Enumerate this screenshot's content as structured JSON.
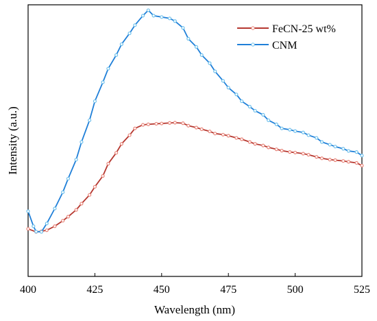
{
  "chart_data": {
    "type": "line",
    "title": "",
    "xlabel": "Wavelength (nm)",
    "ylabel": "Intensity (a.u.)",
    "xlim": [
      400,
      525
    ],
    "ylim": [
      0,
      100
    ],
    "x_ticks": [
      "400",
      "425",
      "450",
      "475",
      "500",
      "525"
    ],
    "y_ticks_shown": false,
    "grid": false,
    "legend_position": "top-right",
    "series": [
      {
        "name": "FeCN-25 wt%",
        "color": "#b5372f",
        "marker_color": "#e8857a",
        "x": [
          400,
          403,
          405,
          407,
          410,
          413,
          415,
          418,
          420,
          423,
          425,
          428,
          430,
          433,
          435,
          438,
          440,
          443,
          445,
          448,
          450,
          453,
          455,
          458,
          460,
          463,
          465,
          468,
          470,
          473,
          475,
          478,
          480,
          483,
          485,
          488,
          490,
          493,
          495,
          498,
          500,
          503,
          505,
          508,
          510,
          513,
          515,
          518,
          520,
          523,
          525
        ],
        "y": [
          17.5,
          16.4,
          16.6,
          17.0,
          18.5,
          20.5,
          22.0,
          24.5,
          26.8,
          30.0,
          33.0,
          37.0,
          41.5,
          45.5,
          48.8,
          52.0,
          54.5,
          55.8,
          56.0,
          56.2,
          56.3,
          56.5,
          56.6,
          56.4,
          55.5,
          54.8,
          54.2,
          53.4,
          52.6,
          52.2,
          51.8,
          51.0,
          50.5,
          49.5,
          48.8,
          48.2,
          47.5,
          46.8,
          46.3,
          45.8,
          45.6,
          45.2,
          44.8,
          44.0,
          43.5,
          43.0,
          42.8,
          42.5,
          42.2,
          41.8,
          40.8
        ]
      },
      {
        "name": "CNM",
        "color": "#1f7fd8",
        "marker_color": "#6fc0ec",
        "x": [
          400,
          402,
          403,
          405,
          407,
          410,
          413,
          415,
          418,
          420,
          423,
          425,
          428,
          430,
          433,
          435,
          438,
          440,
          443,
          445,
          447,
          450,
          453,
          455,
          458,
          460,
          463,
          465,
          468,
          470,
          473,
          475,
          478,
          480,
          483,
          485,
          488,
          490,
          493,
          495,
          498,
          500,
          503,
          505,
          508,
          510,
          513,
          515,
          518,
          520,
          523,
          525
        ],
        "y": [
          24.0,
          18.5,
          16.5,
          16.4,
          19.5,
          25.0,
          31.0,
          36.0,
          43.0,
          49.5,
          57.5,
          64.5,
          71.5,
          76.5,
          81.5,
          85.5,
          89.5,
          92.5,
          96.0,
          98.0,
          96.0,
          95.5,
          95.0,
          94.0,
          91.5,
          87.5,
          84.5,
          81.5,
          78.5,
          75.5,
          72.0,
          69.5,
          67.0,
          64.5,
          62.5,
          61.0,
          59.5,
          57.5,
          56.0,
          54.5,
          54.0,
          53.5,
          53.0,
          52.0,
          51.0,
          49.5,
          48.5,
          47.8,
          47.0,
          46.2,
          45.8,
          44.5
        ]
      }
    ]
  }
}
